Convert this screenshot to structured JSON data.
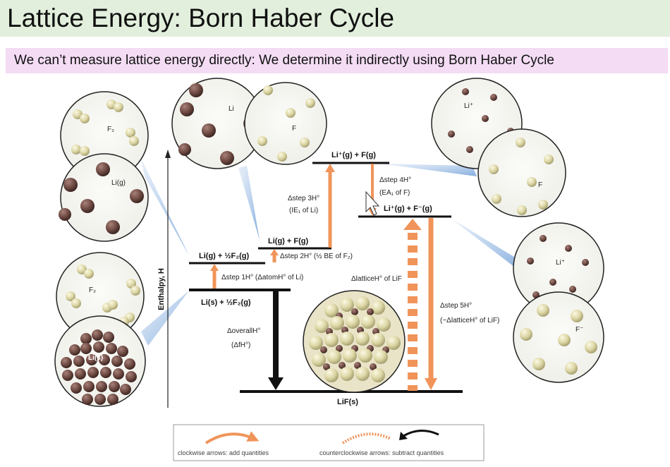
{
  "slide": {
    "title": "Lattice Energy: Born Haber Cycle",
    "subtitle": "We can’t measure lattice energy directly: We determine it indirectly using Born Haber Cycle"
  },
  "colors": {
    "title_bg": "#e2efdc",
    "subtitle_bg": "#f3dcf4",
    "orange_arrow": "#f0945a",
    "black_arrow": "#111111",
    "lithium_atom": "#7a5248",
    "fluorine_atom": "#e6e2b5",
    "blue_pointer": "#8fb4e0"
  },
  "diagram": {
    "y_axis_label": "Enthalpy, H",
    "levels": {
      "li_s_f2": "Li(s) + ½F₂(g)",
      "li_g_f2": "Li(g) + ½F₂(g)",
      "li_g_f_g": "Li(g) + F(g)",
      "li_plus_f": "Li⁺(g) + F(g)",
      "li_plus_f_minus": "Li⁺(g) + F⁻(g)",
      "lif_s": "LiF(s)"
    },
    "steps": {
      "step1": "Δstep 1H° (ΔatomH° of Li)",
      "step2": "Δstep 2H° (½ BE of F₂)",
      "step3_a": "Δstep 3H°",
      "step3_b": "(IE₁ of Li)",
      "step4_a": "Δstep 4H°",
      "step4_b": "(EA₁ of F)",
      "step5_a": "Δstep 5H°",
      "step5_b": "(−ΔlatticeH° of LiF)",
      "lattice": "ΔlatticeH° of LiF",
      "overall_a": "ΔoverallH°",
      "overall_b": "(ΔfH°)"
    },
    "circle_labels": {
      "f2_top": "F₂",
      "li_g": "Li(g)",
      "li_top": "Li",
      "f_top": "F",
      "li_plus_top": "Li⁺",
      "f_right": "F",
      "li_plus_right": "Li⁺",
      "f_minus": "F⁻",
      "f2_bottom": "F₂",
      "li_s": "Li(s)"
    }
  },
  "legend": {
    "clockwise": "clockwise arrows: add quantities",
    "counterclockwise": "counterclockwise arrows: subtract quantities"
  }
}
